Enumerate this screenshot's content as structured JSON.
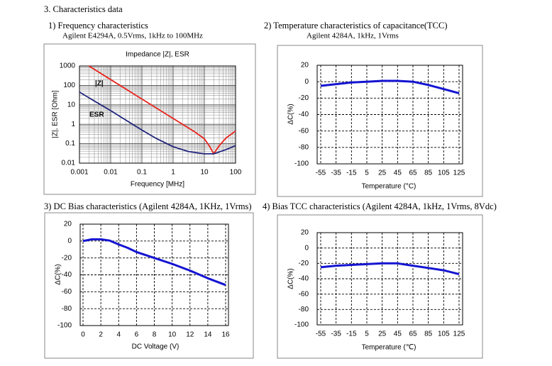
{
  "heading": "3. Characteristics data",
  "chart_data": [
    {
      "type": "line",
      "title": "1) Frequency characteristics",
      "subtitle": "Agilent E4294A, 0.5Vrms, 1kHz to 100MHz",
      "plot_title": "Impedance |Z|, ESR",
      "xlabel": "Frequency [MHz]",
      "ylabel": "|Z|, ESR [Ohm]",
      "xscale": "log",
      "yscale": "log",
      "grid": "dense",
      "xlim": [
        0.001,
        100
      ],
      "ylim": [
        0.01,
        1000
      ],
      "xticks": [
        0.001,
        0.01,
        0.1,
        1,
        10,
        100
      ],
      "yticks": [
        0.01,
        0.1,
        1,
        10,
        100,
        1000
      ],
      "series": [
        {
          "name": "|Z|",
          "color": "#e8231c",
          "x": [
            0.002,
            0.01,
            0.1,
            1,
            5,
            10,
            15,
            20,
            30,
            50,
            100
          ],
          "values": [
            1000,
            200,
            20,
            2,
            0.4,
            0.18,
            0.07,
            0.03,
            0.08,
            0.2,
            0.45
          ]
        },
        {
          "name": "ESR",
          "color": "#1f237a",
          "x": [
            0.001,
            0.01,
            0.1,
            0.3,
            1,
            3,
            10,
            20,
            50,
            100
          ],
          "values": [
            45,
            5,
            0.5,
            0.18,
            0.07,
            0.04,
            0.03,
            0.03,
            0.05,
            0.08
          ]
        }
      ]
    },
    {
      "type": "line",
      "title": "2) Temperature characteristics of capacitance(TCC)",
      "subtitle": "Agilent 4284A, 1kHz, 1Vrms",
      "xlabel": "Temperature (°C)",
      "ylabel": "ΔC(%)",
      "grid": "dashed",
      "color": "#1414d2",
      "xlim": [
        -55,
        125
      ],
      "ylim": [
        -100,
        20
      ],
      "xticks": [
        -55,
        -35,
        -15,
        5,
        25,
        45,
        65,
        85,
        105,
        125
      ],
      "yticks": [
        -100,
        -80,
        -60,
        -40,
        -20,
        0,
        20
      ],
      "x": [
        -55,
        -35,
        -15,
        5,
        25,
        45,
        65,
        85,
        105,
        125
      ],
      "values": [
        -5,
        -3,
        -1,
        0,
        1,
        1,
        0,
        -4,
        -9,
        -14
      ]
    },
    {
      "type": "line",
      "title": "3) DC Bias characteristics (Agilent 4284A, 1KHz, 1Vrms)",
      "xlabel": "DC Voltage (V)",
      "ylabel": "ΔC(%)",
      "grid": "dashed",
      "color": "#1414d2",
      "xlim": [
        0,
        16
      ],
      "ylim": [
        -100,
        20
      ],
      "xticks": [
        0,
        2,
        4,
        6,
        8,
        10,
        12,
        14,
        16
      ],
      "yticks": [
        -100,
        -80,
        -60,
        -40,
        -20,
        0,
        20
      ],
      "x": [
        0,
        1,
        2,
        3,
        4,
        5,
        6,
        8,
        10,
        12,
        14,
        16
      ],
      "values": [
        0,
        2,
        2,
        0.5,
        -4,
        -8,
        -13,
        -20,
        -27,
        -35,
        -44,
        -52
      ]
    },
    {
      "type": "line",
      "title": "4) Bias TCC characteristics (Agilent 4284A, 1kHz, 1Vrms, 8Vdc)",
      "xlabel": "Temperature (℃)",
      "ylabel": "ΔC(%)",
      "grid": "dashed",
      "color": "#1414d2",
      "xlim": [
        -55,
        125
      ],
      "ylim": [
        -100,
        20
      ],
      "xticks": [
        -55,
        -35,
        -15,
        5,
        25,
        45,
        65,
        85,
        105,
        125
      ],
      "yticks": [
        -100,
        -80,
        -60,
        -40,
        -20,
        0,
        20
      ],
      "x": [
        -55,
        -35,
        -15,
        5,
        25,
        45,
        65,
        85,
        105,
        125
      ],
      "values": [
        -25,
        -23,
        -22,
        -21,
        -20,
        -20,
        -23,
        -26,
        -29,
        -34
      ]
    }
  ]
}
